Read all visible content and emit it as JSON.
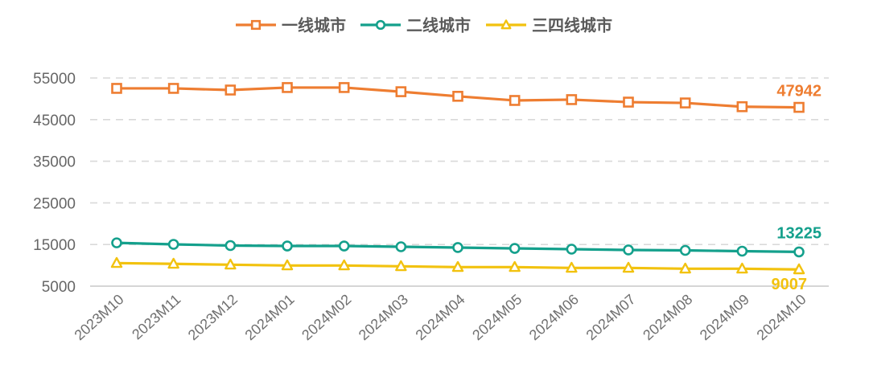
{
  "chart_data": {
    "type": "line",
    "title": "",
    "xlabel": "",
    "ylabel": "",
    "ylim": [
      5000,
      55000
    ],
    "yticks": [
      55000,
      45000,
      35000,
      25000,
      15000,
      5000
    ],
    "ytick_labels": [
      "55000",
      "45000",
      "35000",
      "25000",
      "15000",
      "5000"
    ],
    "grid": "horizontal dashed",
    "legend_position": "top",
    "categories": [
      "2023M10",
      "2023M11",
      "2023M12",
      "2024M01",
      "2024M02",
      "2024M03",
      "2024M04",
      "2024M05",
      "2024M06",
      "2024M07",
      "2024M08",
      "2024M09",
      "2024M10"
    ],
    "series": [
      {
        "name": "一线城市",
        "color": "#EE7D31",
        "marker": "square",
        "values": [
          52500,
          52500,
          52100,
          52700,
          52700,
          51700,
          50600,
          49600,
          49800,
          49200,
          49000,
          48100,
          47942
        ],
        "end_label": "47942"
      },
      {
        "name": "二线城市",
        "color": "#14A08C",
        "marker": "circle",
        "values": [
          15400,
          15040,
          14750,
          14650,
          14650,
          14460,
          14270,
          14070,
          13880,
          13690,
          13590,
          13400,
          13225
        ],
        "end_label": "13225"
      },
      {
        "name": "三四线城市",
        "color": "#F2C20F",
        "marker": "triangle",
        "values": [
          10540,
          10350,
          10150,
          9960,
          9960,
          9770,
          9570,
          9570,
          9380,
          9380,
          9190,
          9190,
          9007
        ],
        "end_label": "9007"
      }
    ]
  },
  "legend": {
    "items": [
      {
        "label": "一线城市",
        "color": "#EE7D31",
        "marker": "square"
      },
      {
        "label": "二线城市",
        "color": "#14A08C",
        "marker": "circle"
      },
      {
        "label": "三四线城市",
        "color": "#F2C20F",
        "marker": "triangle"
      }
    ]
  }
}
